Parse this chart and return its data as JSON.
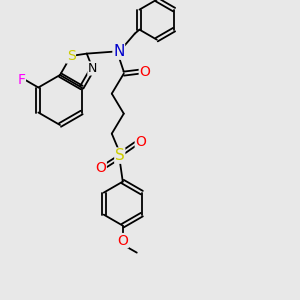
{
  "background_color": "#e8e8e8",
  "atom_colors": {
    "C": "#000000",
    "N": "#0000cc",
    "O": "#ff0000",
    "S": "#cccc00",
    "F": "#ff00ff",
    "H": "#000000"
  },
  "bond_color": "#000000",
  "figsize": [
    3.0,
    3.0
  ],
  "dpi": 100
}
